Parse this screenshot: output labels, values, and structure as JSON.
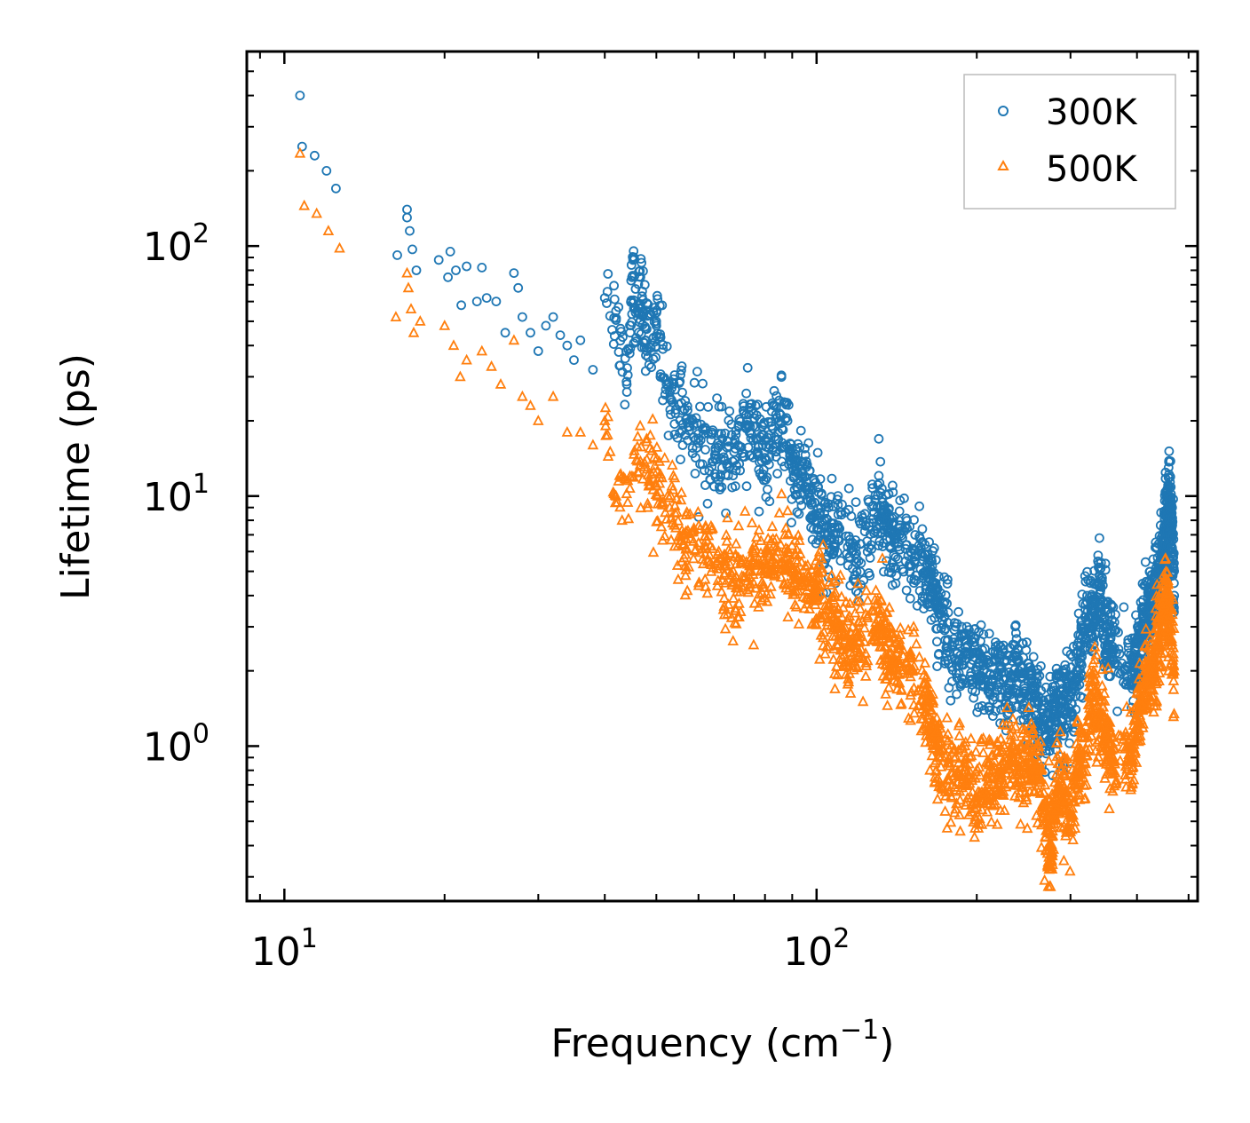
{
  "chart_data": {
    "type": "scatter",
    "xscale": "log",
    "yscale": "log",
    "xlim": [
      8.5,
      520
    ],
    "ylim": [
      0.24,
      600
    ],
    "xlabel": "Frequency (cm",
    "xlabel_sup": "−1",
    "xlabel_end": ")",
    "ylabel": "Lifetime (ps)",
    "xticks": [
      {
        "base": "10",
        "exp": "1",
        "value": 10
      },
      {
        "base": "10",
        "exp": "2",
        "value": 100
      }
    ],
    "yticks": [
      {
        "base": "10",
        "exp": "0",
        "value": 1
      },
      {
        "base": "10",
        "exp": "1",
        "value": 10
      },
      {
        "base": "10",
        "exp": "2",
        "value": 100
      }
    ],
    "legend_position": "top-right",
    "colors": {
      "300K": "#1f77b4",
      "500K": "#ff7f0e"
    },
    "series": [
      {
        "name": "300K",
        "marker": "circle",
        "color": "#1f77b4",
        "x": [
          10.7,
          10.8,
          11.4,
          12.0,
          12.5,
          16.3,
          17.0,
          17.0,
          17.2,
          17.4,
          17.7,
          19.5,
          20.3,
          20.5,
          21.0,
          21.5,
          22.0,
          23.0,
          23.5,
          24.0,
          25.0,
          26.0,
          27.0,
          27.5,
          28.0,
          29.0,
          30.0,
          31.0,
          32.0,
          33.0,
          34.0,
          35.0,
          36.0,
          38.0,
          40.0,
          42.0,
          44.0,
          45.0,
          46.0,
          47.0,
          48.0,
          50.0,
          53.0,
          56.0,
          60.0,
          65.0,
          70.0,
          75.0,
          80.0,
          85.0,
          90.0,
          95.0,
          100.0,
          105.0,
          110.0,
          120.0,
          130.0,
          135.0,
          140.0,
          150.0,
          160.0,
          165.0,
          170.0,
          180.0,
          190.0,
          200.0,
          210.0,
          220.0,
          230.0,
          240.0,
          250.0,
          260.0,
          270.0,
          280.0,
          290.0,
          300.0,
          310.0,
          320.0,
          330.0,
          340.0,
          350.0,
          360.0,
          390.0,
          400.0,
          410.0,
          420.0,
          430.0,
          440.0,
          450.0,
          455.0,
          460.0,
          465.0,
          470.0
        ],
        "y": [
          400.0,
          250.0,
          230.0,
          200.0,
          170.0,
          92.0,
          140.0,
          130.0,
          115.0,
          97.0,
          80.0,
          88.0,
          75.0,
          95.0,
          80.0,
          58.0,
          83.0,
          60.0,
          82.0,
          62.0,
          60.0,
          45.0,
          78.0,
          68.0,
          52.0,
          45.0,
          38.0,
          48.0,
          52.0,
          44.0,
          40.0,
          35.0,
          42.0,
          32.0,
          62.0,
          55.0,
          28.0,
          75.0,
          55.0,
          63.0,
          38.0,
          48.0,
          26.0,
          22.0,
          17.0,
          14.0,
          15.0,
          19.0,
          14.0,
          20.0,
          13.0,
          12.0,
          8.0,
          7.0,
          7.5,
          5.5,
          9.0,
          8.0,
          6.5,
          6.0,
          5.0,
          4.5,
          3.5,
          2.5,
          2.2,
          2.0,
          1.8,
          1.9,
          1.7,
          2.0,
          1.6,
          1.5,
          1.1,
          1.3,
          1.5,
          1.6,
          2.0,
          3.5,
          3.0,
          4.5,
          3.0,
          2.5,
          1.8,
          2.2,
          3.0,
          3.5,
          4.0,
          5.0,
          6.5,
          8.5,
          9.0,
          7.0,
          4.0
        ]
      },
      {
        "name": "500K",
        "marker": "triangle",
        "color": "#ff7f0e",
        "x": [
          10.7,
          10.9,
          11.5,
          12.1,
          12.7,
          16.2,
          17.0,
          17.1,
          17.3,
          17.5,
          18.0,
          20.0,
          20.8,
          21.4,
          22.0,
          23.5,
          24.5,
          25.5,
          27.0,
          28.0,
          29.0,
          30.0,
          32.0,
          34.0,
          36.0,
          38.0,
          40.0,
          42.0,
          45.0,
          48.0,
          50.0,
          53.0,
          56.0,
          60.0,
          65.0,
          70.0,
          75.0,
          80.0,
          85.0,
          90.0,
          95.0,
          100.0,
          105.0,
          110.0,
          115.0,
          120.0,
          130.0,
          135.0,
          140.0,
          150.0,
          160.0,
          165.0,
          170.0,
          180.0,
          190.0,
          200.0,
          210.0,
          220.0,
          230.0,
          240.0,
          250.0,
          260.0,
          270.0,
          275.0,
          280.0,
          290.0,
          300.0,
          310.0,
          320.0,
          330.0,
          340.0,
          350.0,
          360.0,
          390.0,
          400.0,
          410.0,
          420.0,
          430.0,
          440.0,
          450.0,
          455.0,
          460.0,
          470.0
        ],
        "y": [
          235.0,
          145.0,
          135.0,
          115.0,
          98.0,
          52.0,
          78.0,
          68.0,
          56.0,
          45.0,
          50.0,
          48.0,
          40.0,
          30.0,
          35.0,
          38.0,
          33.0,
          28.0,
          42.0,
          25.0,
          23.0,
          20.0,
          25.0,
          18.0,
          18.0,
          16.0,
          20.0,
          10.0,
          12.0,
          14.0,
          11.0,
          9.0,
          7.0,
          6.5,
          5.5,
          4.5,
          5.0,
          5.5,
          6.0,
          5.0,
          4.5,
          4.0,
          3.5,
          3.0,
          2.5,
          2.6,
          3.0,
          2.5,
          2.2,
          2.0,
          1.5,
          1.2,
          0.9,
          0.7,
          0.8,
          0.6,
          0.75,
          0.7,
          0.95,
          0.8,
          0.9,
          0.8,
          0.5,
          0.35,
          0.6,
          0.7,
          0.5,
          0.9,
          0.85,
          1.8,
          1.3,
          1.1,
          0.9,
          0.9,
          1.2,
          1.5,
          2.0,
          2.2,
          2.5,
          3.5,
          4.0,
          3.0,
          2.0
        ]
      }
    ]
  }
}
